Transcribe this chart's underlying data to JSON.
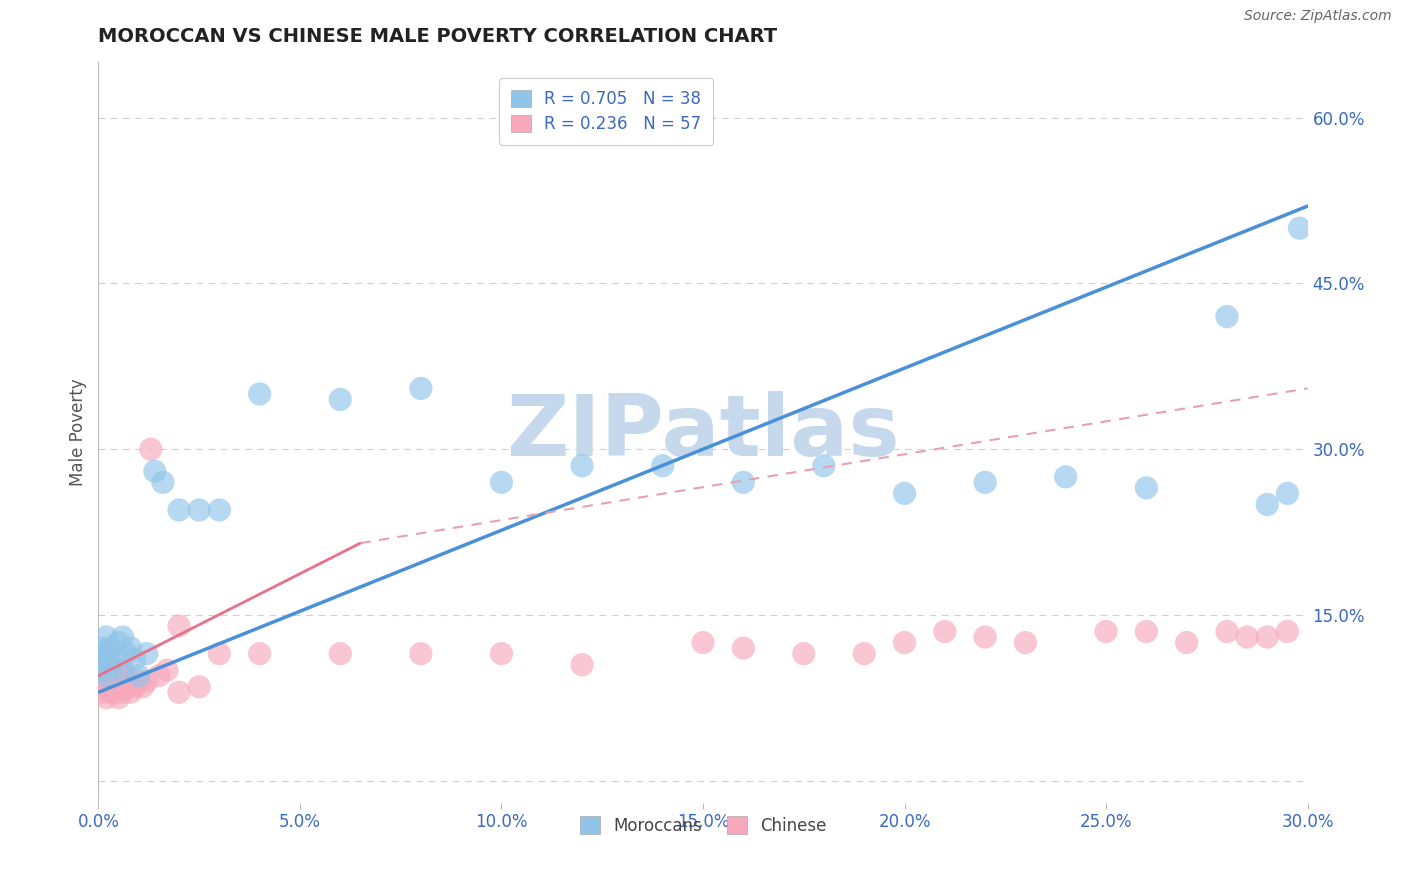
{
  "title": "MOROCCAN VS CHINESE MALE POVERTY CORRELATION CHART",
  "source": "Source: ZipAtlas.com",
  "xlabel_ticks": [
    0.0,
    5.0,
    10.0,
    15.0,
    20.0,
    25.0,
    30.0
  ],
  "ylabel_ticks_right": [
    15.0,
    30.0,
    45.0,
    60.0
  ],
  "moroccan_R": 0.705,
  "moroccan_N": 38,
  "chinese_R": 0.236,
  "chinese_N": 57,
  "moroccan_color": "#90c4e8",
  "chinese_color": "#f7a8bc",
  "moroccan_line_color": "#4a90d9",
  "chinese_line_solid_color": "#e8708a",
  "chinese_line_dash_color": "#e8a0b0",
  "background_color": "#ffffff",
  "grid_color": "#d0d0d0",
  "watermark": "ZIPatlas",
  "watermark_color": "#c5d8ec",
  "xlim": [
    0.0,
    0.3
  ],
  "ylim": [
    -0.02,
    0.65
  ],
  "moroccan_x": [
    0.001,
    0.001,
    0.001,
    0.002,
    0.002,
    0.002,
    0.003,
    0.003,
    0.004,
    0.005,
    0.006,
    0.006,
    0.007,
    0.008,
    0.009,
    0.01,
    0.012,
    0.014,
    0.016,
    0.02,
    0.025,
    0.03,
    0.04,
    0.06,
    0.08,
    0.1,
    0.12,
    0.14,
    0.16,
    0.18,
    0.2,
    0.22,
    0.24,
    0.26,
    0.28,
    0.29,
    0.295,
    0.298
  ],
  "moroccan_y": [
    0.1,
    0.11,
    0.12,
    0.095,
    0.115,
    0.13,
    0.105,
    0.12,
    0.11,
    0.125,
    0.1,
    0.13,
    0.115,
    0.12,
    0.11,
    0.095,
    0.115,
    0.28,
    0.27,
    0.245,
    0.245,
    0.245,
    0.35,
    0.345,
    0.355,
    0.27,
    0.285,
    0.285,
    0.27,
    0.285,
    0.26,
    0.27,
    0.275,
    0.265,
    0.42,
    0.25,
    0.26,
    0.5
  ],
  "chinese_x": [
    0.001,
    0.001,
    0.001,
    0.001,
    0.001,
    0.002,
    0.002,
    0.002,
    0.002,
    0.003,
    0.003,
    0.003,
    0.003,
    0.004,
    0.004,
    0.004,
    0.005,
    0.005,
    0.005,
    0.006,
    0.006,
    0.006,
    0.007,
    0.007,
    0.008,
    0.008,
    0.009,
    0.01,
    0.011,
    0.012,
    0.013,
    0.015,
    0.017,
    0.02,
    0.025,
    0.03,
    0.04,
    0.06,
    0.08,
    0.1,
    0.12,
    0.15,
    0.16,
    0.175,
    0.19,
    0.2,
    0.21,
    0.22,
    0.23,
    0.25,
    0.26,
    0.27,
    0.28,
    0.285,
    0.29,
    0.295,
    0.02
  ],
  "chinese_y": [
    0.08,
    0.085,
    0.09,
    0.095,
    0.1,
    0.075,
    0.085,
    0.095,
    0.1,
    0.08,
    0.09,
    0.095,
    0.1,
    0.08,
    0.09,
    0.095,
    0.075,
    0.085,
    0.095,
    0.08,
    0.09,
    0.1,
    0.085,
    0.095,
    0.08,
    0.09,
    0.085,
    0.09,
    0.085,
    0.09,
    0.3,
    0.095,
    0.1,
    0.08,
    0.085,
    0.115,
    0.115,
    0.115,
    0.115,
    0.115,
    0.105,
    0.125,
    0.12,
    0.115,
    0.115,
    0.125,
    0.135,
    0.13,
    0.125,
    0.135,
    0.135,
    0.125,
    0.135,
    0.13,
    0.13,
    0.135,
    0.14
  ],
  "moroccan_line_x": [
    0.0,
    0.3
  ],
  "moroccan_line_y": [
    0.08,
    0.52
  ],
  "chinese_solid_line_x": [
    0.0,
    0.065
  ],
  "chinese_solid_line_y": [
    0.095,
    0.215
  ],
  "chinese_dash_line_x": [
    0.065,
    0.3
  ],
  "chinese_dash_line_y": [
    0.215,
    0.355
  ]
}
